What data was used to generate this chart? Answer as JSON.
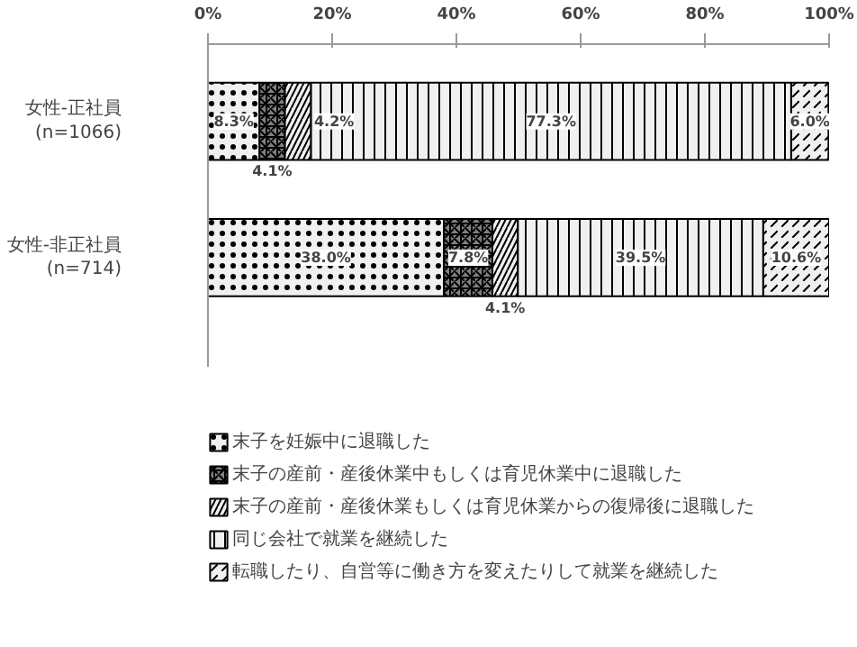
{
  "chart_data": {
    "type": "bar",
    "orientation": "horizontal",
    "stacked": true,
    "categories": [
      "女性-正社員\n(n=1066)",
      "女性-非正社員\n(n=714)"
    ],
    "series": [
      {
        "name": "末子を妊娠中に退職した",
        "color": "#f0f0f0",
        "values": [
          8.3,
          38.0
        ],
        "value_labels": [
          "8.3%",
          "38.0%"
        ]
      },
      {
        "name": "末子の産前・産後休業中もしくは育児休業中に退職した",
        "color": "#808080",
        "values": [
          4.1,
          7.8
        ],
        "value_labels": [
          "4.1%",
          "7.8%"
        ]
      },
      {
        "name": "末子の産前・産後休業もしくは育児休業からの復帰後に退職した",
        "color": "#f0f0f0",
        "values": [
          4.2,
          4.1
        ],
        "value_labels": [
          "4.2%",
          "4.1%"
        ]
      },
      {
        "name": "同じ会社で就業を継続した",
        "color": "#f0f0f0",
        "values": [
          77.3,
          39.5
        ],
        "value_labels": [
          "77.3%",
          "39.5%"
        ]
      },
      {
        "name": "転職したり、自営等に働き方を変えたりして就業を継続した",
        "color": "#f0f0f0",
        "values": [
          6.0,
          10.6
        ],
        "value_labels": [
          "6.0%",
          "10.6%"
        ]
      }
    ],
    "xlim": [
      0,
      100
    ],
    "xticks": [
      {
        "value": 0,
        "label": "0%"
      },
      {
        "value": 20,
        "label": "20%"
      },
      {
        "value": 40,
        "label": "40%"
      },
      {
        "value": 60,
        "label": "60%"
      },
      {
        "value": 80,
        "label": "80%"
      },
      {
        "value": 100,
        "label": "100%"
      }
    ],
    "legend": "bottom"
  }
}
